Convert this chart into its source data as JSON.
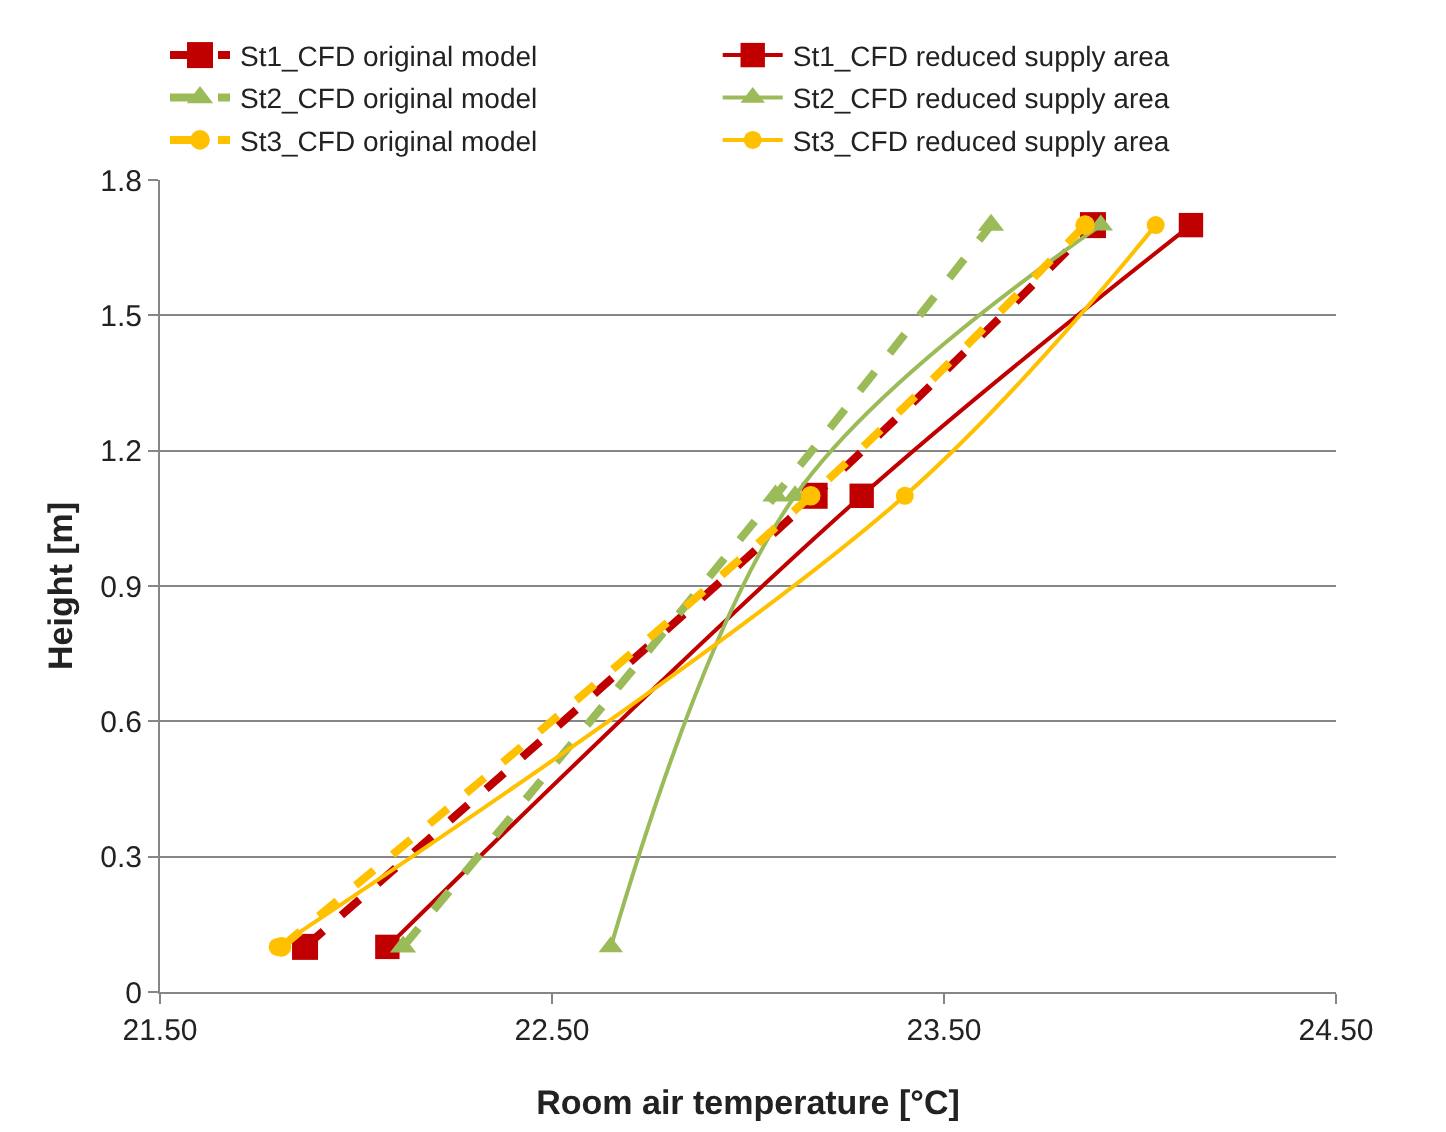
{
  "chart_data": {
    "type": "line",
    "xlabel": "Room air temperature [°C]",
    "ylabel": "Height [m]",
    "xlim": [
      21.5,
      24.5
    ],
    "xticks": [
      {
        "value": 21.5,
        "label": "21.50"
      },
      {
        "value": 22.5,
        "label": "22.50"
      },
      {
        "value": 23.5,
        "label": "23.50"
      },
      {
        "value": 24.5,
        "label": "24.50"
      }
    ],
    "ylim": [
      0,
      1.8
    ],
    "yticks": [
      0,
      0.3,
      0.6,
      0.9,
      1.2,
      1.5,
      1.8
    ],
    "grid": "y",
    "legend": "top",
    "series": [
      {
        "name": "St1_CFD original model",
        "color": "#c00000",
        "line_style": "dashed",
        "marker": "square",
        "x": [
          21.87,
          23.17,
          23.88
        ],
        "values": [
          0.1,
          1.1,
          1.7
        ]
      },
      {
        "name": "St1_CFD reduced supply area",
        "color": "#c00000",
        "line_style": "solid",
        "marker": "square",
        "x": [
          22.08,
          23.29,
          24.13
        ],
        "values": [
          0.1,
          1.1,
          1.7
        ]
      },
      {
        "name": "St2_CFD original model",
        "color": "#9bbb59",
        "line_style": "dashed",
        "marker": "triangle",
        "x": [
          22.12,
          23.07,
          23.62
        ],
        "values": [
          0.1,
          1.1,
          1.7
        ]
      },
      {
        "name": "St2_CFD reduced supply area",
        "color": "#9bbb59",
        "line_style": "solid",
        "marker": "triangle",
        "x": [
          22.65,
          23.12,
          23.9
        ],
        "values": [
          0.1,
          1.1,
          1.7
        ]
      },
      {
        "name": "St3_CFD original model",
        "color": "#ffc000",
        "line_style": "dashed",
        "marker": "circle",
        "x": [
          21.81,
          23.16,
          23.86
        ],
        "values": [
          0.1,
          1.1,
          1.7
        ]
      },
      {
        "name": "St3_CFD reduced supply area",
        "color": "#ffc000",
        "line_style": "solid",
        "marker": "circle",
        "x": [
          21.8,
          23.4,
          24.04
        ],
        "values": [
          0.1,
          1.1,
          1.7
        ]
      }
    ]
  }
}
